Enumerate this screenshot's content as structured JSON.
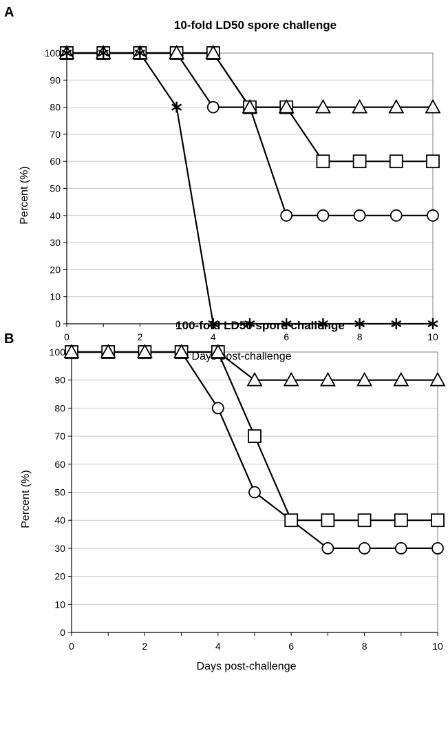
{
  "chart_data": [
    {
      "panel": "A",
      "type": "line",
      "title": "10-fold LD50 spore challenge",
      "xlabel": "Days post-challenge",
      "ylabel": "Percent (%)",
      "xlim": [
        0,
        10
      ],
      "ylim": [
        0,
        100
      ],
      "x_ticks": [
        0,
        2,
        4,
        6,
        8,
        10
      ],
      "y_ticks": [
        0,
        10,
        20,
        30,
        40,
        50,
        60,
        70,
        80,
        90,
        100
      ],
      "grid": true,
      "x": [
        0,
        1,
        2,
        3,
        4,
        5,
        6,
        7,
        8,
        9,
        10
      ],
      "series": [
        {
          "marker": "circle",
          "values": [
            100,
            100,
            100,
            100,
            80,
            80,
            40,
            40,
            40,
            40,
            40
          ]
        },
        {
          "marker": "square",
          "values": [
            100,
            100,
            100,
            100,
            100,
            80,
            80,
            60,
            60,
            60,
            60
          ]
        },
        {
          "marker": "triangle",
          "values": [
            100,
            100,
            100,
            100,
            100,
            80,
            80,
            80,
            80,
            80,
            80
          ]
        },
        {
          "marker": "star",
          "values": [
            100,
            100,
            100,
            80,
            0,
            0,
            0,
            0,
            0,
            0,
            0
          ]
        }
      ]
    },
    {
      "panel": "B",
      "type": "line",
      "title": "100-fold LD50 spore challenge",
      "xlabel": "Days post-challenge",
      "ylabel": "Percent (%)",
      "xlim": [
        0,
        10
      ],
      "ylim": [
        0,
        100
      ],
      "x_ticks": [
        0,
        2,
        4,
        6,
        8,
        10
      ],
      "y_ticks": [
        0,
        10,
        20,
        30,
        40,
        50,
        60,
        70,
        80,
        90,
        100
      ],
      "grid": true,
      "x": [
        0,
        1,
        2,
        3,
        4,
        5,
        6,
        7,
        8,
        9,
        10
      ],
      "series": [
        {
          "marker": "circle",
          "values": [
            100,
            100,
            100,
            100,
            80,
            50,
            40,
            30,
            30,
            30,
            30
          ]
        },
        {
          "marker": "square",
          "values": [
            100,
            100,
            100,
            100,
            100,
            70,
            40,
            40,
            40,
            40,
            40
          ]
        },
        {
          "marker": "triangle",
          "values": [
            100,
            100,
            100,
            100,
            100,
            90,
            90,
            90,
            90,
            90,
            90
          ]
        }
      ]
    }
  ],
  "colors": {
    "line": "#000000",
    "grid": "#c8c8c8",
    "frame": "#808080",
    "marker_fill": "#ffffff"
  }
}
